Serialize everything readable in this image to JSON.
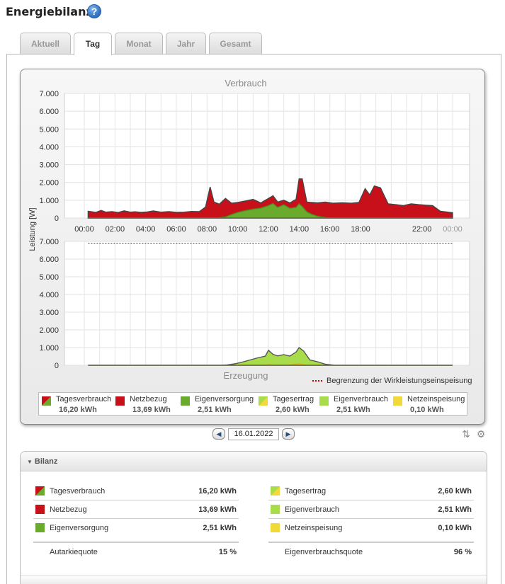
{
  "page": {
    "title": "Energiebilanz",
    "help_icon": "help-icon"
  },
  "tabs": [
    {
      "label": "Aktuell",
      "active": false
    },
    {
      "label": "Tag",
      "active": true
    },
    {
      "label": "Monat",
      "active": false
    },
    {
      "label": "Jahr",
      "active": false
    },
    {
      "label": "Gesamt",
      "active": false
    }
  ],
  "colors": {
    "netzbezug": "#c8101b",
    "eigenversorgung": "#6aab2e",
    "tagesertrag_green": "#a8dc4a",
    "netzeinspeisung": "#f2d93a",
    "limit": "#cc0000"
  },
  "chart_data": [
    {
      "type": "area",
      "title": "Verbrauch",
      "ylabel": "Leistung [W]",
      "ylim": [
        0,
        7000
      ],
      "yticks": [
        "7.000",
        "6.000",
        "5.000",
        "4.000",
        "3.000",
        "2.000",
        "1.000",
        "0"
      ],
      "xticks": [
        "00:00",
        "02:00",
        "04:00",
        "06:00",
        "08:00",
        "10:00",
        "12:00",
        "14:00",
        "16:00",
        "18:00",
        "22:00",
        "00:00"
      ],
      "xtick_hours": [
        0,
        2,
        4,
        6,
        8,
        10,
        12,
        14,
        16,
        18,
        22,
        24
      ],
      "grid": true,
      "x_hours": [
        0.25,
        0.75,
        1.1,
        1.4,
        1.8,
        2.2,
        2.6,
        3.0,
        3.3,
        3.7,
        4.1,
        4.5,
        5.0,
        5.5,
        6.0,
        6.5,
        7.0,
        7.5,
        7.9,
        8.2,
        8.45,
        8.8,
        9.2,
        9.6,
        10.0,
        10.5,
        11.0,
        11.5,
        12.0,
        12.3,
        12.6,
        13.0,
        13.4,
        13.8,
        14.0,
        14.2,
        14.5,
        14.8,
        15.2,
        15.7,
        16.2,
        16.8,
        17.4,
        17.9,
        18.3,
        18.6,
        18.9,
        19.3,
        19.8,
        20.3,
        20.8,
        21.3,
        21.8,
        22.3,
        22.7,
        23.2,
        24.0
      ],
      "series": [
        {
          "name": "Tagesverbrauch",
          "values": [
            380,
            320,
            430,
            330,
            360,
            310,
            400,
            330,
            350,
            320,
            340,
            400,
            330,
            360,
            320,
            330,
            370,
            360,
            620,
            1750,
            900,
            780,
            1100,
            830,
            880,
            960,
            1050,
            850,
            1100,
            1250,
            900,
            1000,
            850,
            1050,
            2200,
            2200,
            900,
            880,
            850,
            900,
            830,
            860,
            830,
            880,
            1650,
            1300,
            1800,
            1700,
            800,
            750,
            700,
            800,
            750,
            720,
            700,
            380,
            300
          ]
        },
        {
          "name": "Eigenversorgung",
          "values": [
            0,
            0,
            0,
            0,
            0,
            0,
            0,
            0,
            0,
            0,
            0,
            0,
            0,
            0,
            0,
            0,
            0,
            0,
            0,
            0,
            0,
            10,
            60,
            200,
            320,
            420,
            500,
            560,
            700,
            820,
            600,
            750,
            550,
            600,
            800,
            650,
            350,
            220,
            100,
            20,
            0,
            0,
            0,
            0,
            0,
            0,
            0,
            0,
            0,
            0,
            0,
            0,
            0,
            0,
            0,
            0,
            0
          ]
        }
      ]
    },
    {
      "type": "area",
      "title": "Erzeugung",
      "ylabel": "Leistung [W]",
      "ylim": [
        0,
        7000
      ],
      "yticks": [
        "7.000",
        "6.000",
        "5.000",
        "4.000",
        "3.000",
        "2.000",
        "1.000",
        "0"
      ],
      "grid": true,
      "limit_value": 6900,
      "x_hours": [
        0.25,
        8.8,
        9.3,
        9.8,
        10.3,
        10.8,
        11.3,
        11.8,
        12.0,
        12.3,
        12.6,
        13.0,
        13.4,
        13.8,
        14.0,
        14.3,
        14.7,
        15.2,
        15.7,
        16.3,
        17.0,
        24.0
      ],
      "series": [
        {
          "name": "Tagesertrag",
          "values": [
            0,
            0,
            20,
            80,
            180,
            300,
            420,
            520,
            850,
            620,
            530,
            600,
            520,
            750,
            1000,
            800,
            300,
            200,
            60,
            10,
            0,
            0
          ]
        },
        {
          "name": "Netzeinspeisung",
          "values": [
            0,
            0,
            0,
            0,
            0,
            0,
            0,
            0,
            40,
            20,
            0,
            0,
            30,
            60,
            80,
            30,
            0,
            0,
            0,
            0,
            0,
            0
          ]
        }
      ]
    }
  ],
  "limit_legend": "Begrenzung der Wirkleistungseinspeisung",
  "legend": [
    {
      "label": "Tagesverbrauch",
      "value": "16,20 kWh",
      "swatch": "split-red-green"
    },
    {
      "label": "Netzbezug",
      "value": "13,69 kWh",
      "swatch": "red"
    },
    {
      "label": "Eigenversorgung",
      "value": "2,51 kWh",
      "swatch": "green"
    },
    {
      "label": "Tagesertrag",
      "value": "2,60 kWh",
      "swatch": "split-green-yellow"
    },
    {
      "label": "Eigenverbrauch",
      "value": "2,51 kWh",
      "swatch": "lightgreen"
    },
    {
      "label": "Netzeinspeisung",
      "value": "0,10 kWh",
      "swatch": "yellow"
    }
  ],
  "datenav": {
    "date": "16.01.2022",
    "prev_icon": "chevron-left-icon",
    "next_icon": "chevron-right-icon"
  },
  "tools": {
    "sort_icon": "sort-icon",
    "settings_icon": "gear-icon"
  },
  "bilanz": {
    "title": "Bilanz",
    "left": [
      {
        "label": "Tagesverbrauch",
        "value": "16,20 kWh",
        "swatch": "split-red-green"
      },
      {
        "label": "Netzbezug",
        "value": "13,69 kWh",
        "swatch": "red"
      },
      {
        "label": "Eigenversorgung",
        "value": "2,51 kWh",
        "swatch": "green"
      }
    ],
    "right": [
      {
        "label": "Tagesertrag",
        "value": "2,60 kWh",
        "swatch": "split-green-yellow"
      },
      {
        "label": "Eigenverbrauch",
        "value": "2,51 kWh",
        "swatch": "lightgreen"
      },
      {
        "label": "Netzeinspeisung",
        "value": "0,10 kWh",
        "swatch": "yellow"
      }
    ],
    "left_quote": {
      "label": "Autarkiequote",
      "value": "15 %"
    },
    "right_quote": {
      "label": "Eigenverbrauchsquote",
      "value": "96 %"
    }
  }
}
